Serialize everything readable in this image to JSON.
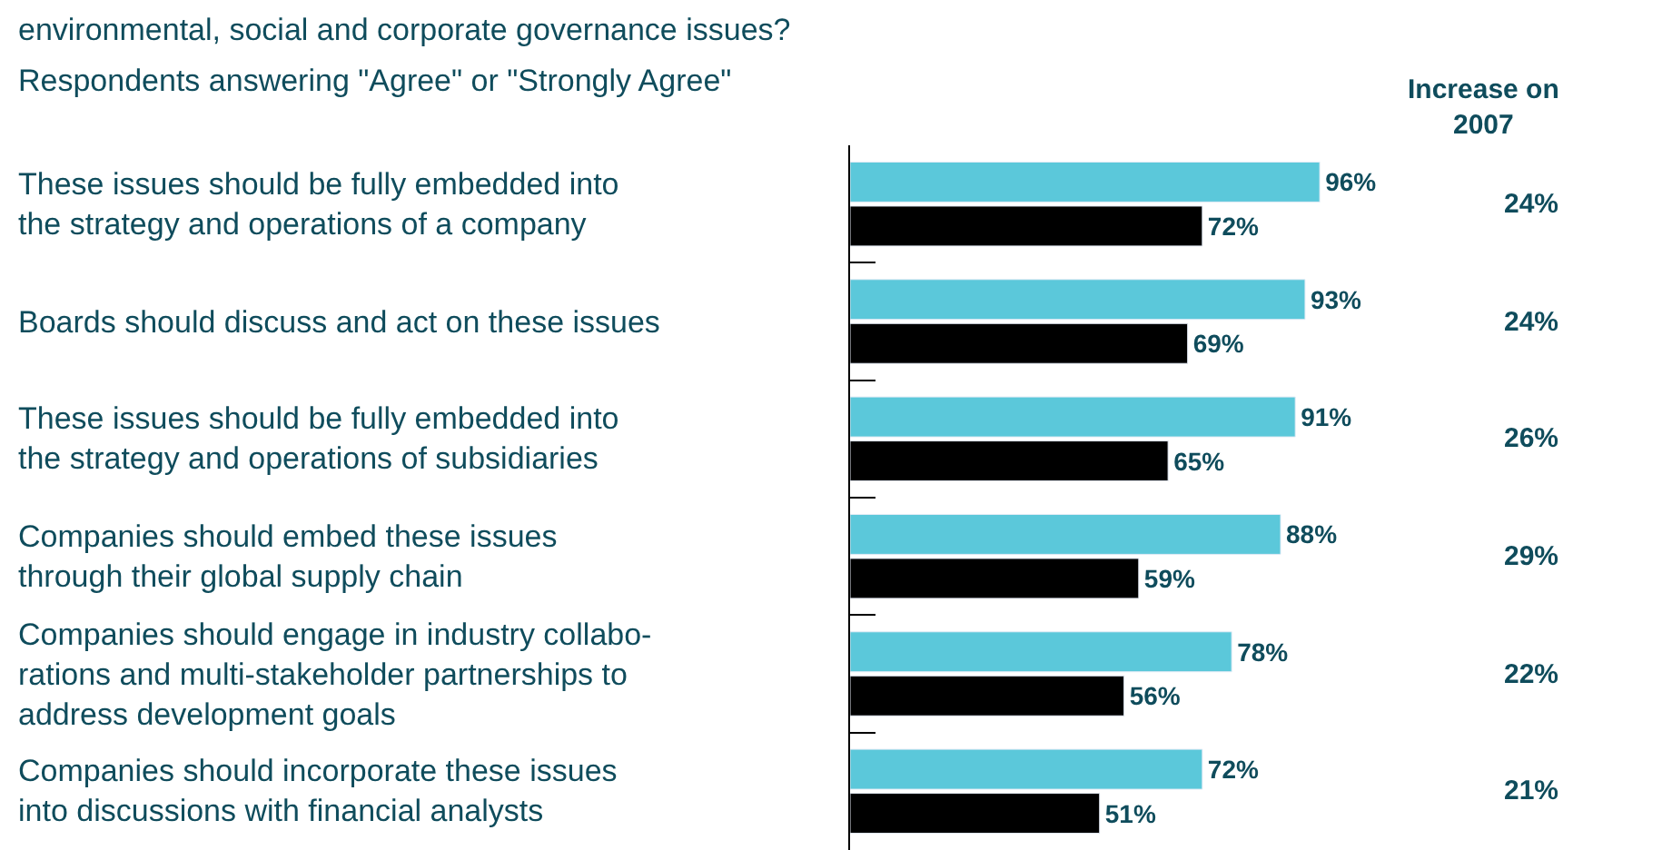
{
  "chart_data": {
    "type": "bar",
    "orientation": "horizontal",
    "title": "environmental, social and corporate governance issues?",
    "subtitle": "Respondents answering \"Agree\" or \"Strongly Agree\"",
    "legend_title": "Increase on\n2007",
    "categories": [
      "These issues should be fully embedded into\nthe strategy and operations of a company",
      "Boards should discuss and act on these issues",
      "These issues should be fully embedded into\nthe strategy and operations of subsidiaries",
      "Companies should embed these issues\nthrough their global supply chain",
      "Companies should engage in industry collabo-\nrations and multi-stakeholder partnerships to\naddress development goals",
      "Companies should incorporate these issues\ninto discussions with financial analysts"
    ],
    "series": [
      {
        "color": "#5bc8da",
        "values": [
          96,
          93,
          91,
          88,
          78,
          72
        ],
        "value_labels": [
          "96%",
          "93%",
          "91%",
          "88%",
          "78%",
          "72%"
        ]
      },
      {
        "color": "#000000",
        "values": [
          72,
          69,
          65,
          59,
          56,
          51
        ],
        "value_labels": [
          "72%",
          "69%",
          "65%",
          "59%",
          "56%",
          "51%"
        ]
      }
    ],
    "annotations": [
      "24%",
      "24%",
      "26%",
      "29%",
      "22%",
      "21%"
    ]
  }
}
